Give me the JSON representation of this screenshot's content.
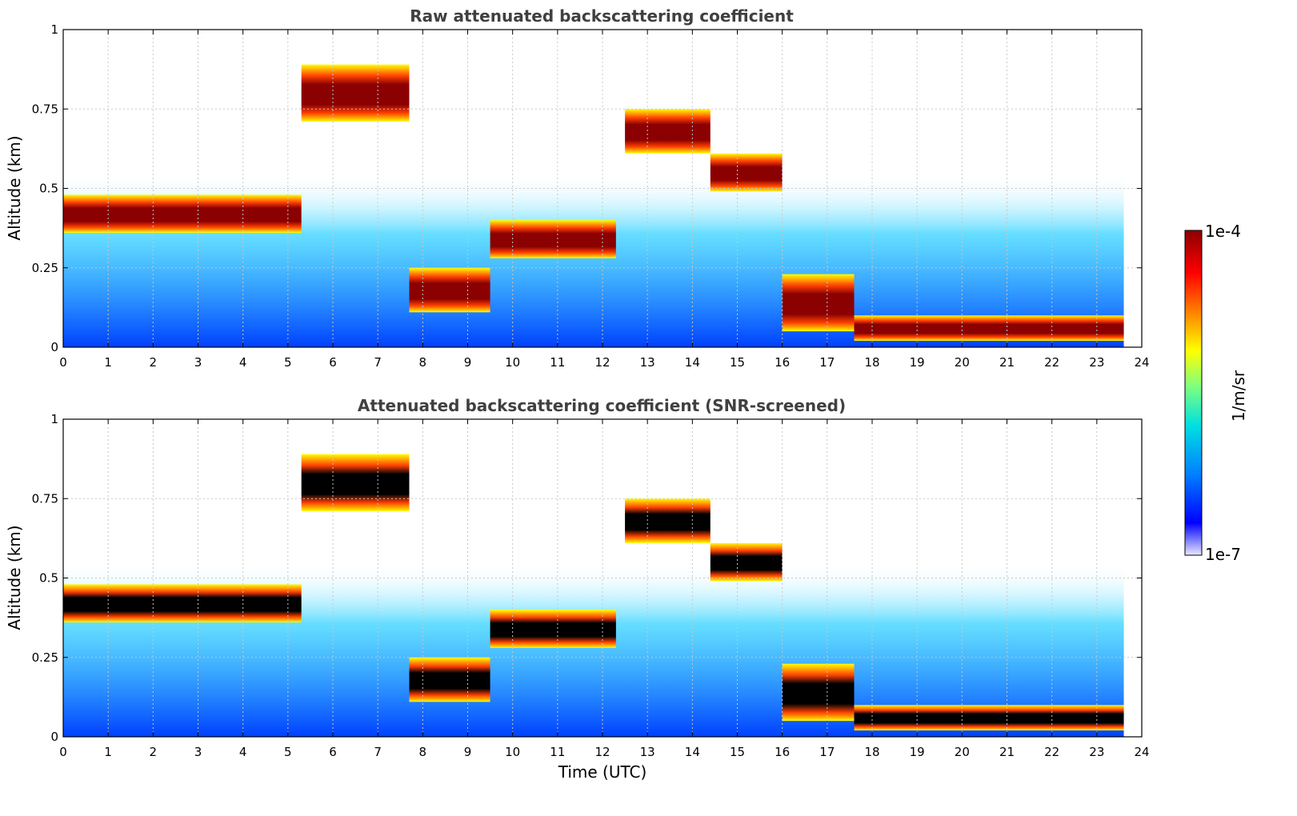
{
  "chart_data": [
    {
      "type": "heatmap",
      "title": "Raw attenuated backscattering coefficient",
      "xlabel": "",
      "ylabel": "Altitude (km)",
      "xlim": [
        0,
        24
      ],
      "ylim": [
        0,
        1
      ],
      "xticks": [
        "0",
        "1",
        "2",
        "3",
        "4",
        "5",
        "6",
        "7",
        "8",
        "9",
        "10",
        "11",
        "12",
        "13",
        "14",
        "15",
        "16",
        "17",
        "18",
        "19",
        "20",
        "21",
        "22",
        "23",
        "24"
      ],
      "yticks": [
        "0",
        "0.25",
        "0.5",
        "0.75",
        "1"
      ],
      "grid": true,
      "layers": [
        {
          "x": 0.0,
          "xend": 5.3,
          "y": 0.42,
          "thickness": 0.12,
          "color": "#8b0000"
        },
        {
          "x": 5.3,
          "xend": 7.7,
          "y": 0.8,
          "thickness": 0.18,
          "color": "#8b0000"
        },
        {
          "x": 7.7,
          "xend": 9.5,
          "y": 0.18,
          "thickness": 0.14,
          "color": "#8b0000"
        },
        {
          "x": 9.5,
          "xend": 12.3,
          "y": 0.34,
          "thickness": 0.12,
          "color": "#8b0000"
        },
        {
          "x": 12.5,
          "xend": 14.4,
          "y": 0.68,
          "thickness": 0.14,
          "color": "#8b0000"
        },
        {
          "x": 14.4,
          "xend": 16.0,
          "y": 0.55,
          "thickness": 0.12,
          "color": "#8b0000"
        },
        {
          "x": 16.0,
          "xend": 17.6,
          "y": 0.14,
          "thickness": 0.18,
          "color": "#8b0000"
        },
        {
          "x": 17.6,
          "xend": 23.6,
          "y": 0.06,
          "thickness": 0.08,
          "color": "#8b0000"
        }
      ],
      "data_extent": {
        "xmax": 23.6
      }
    },
    {
      "type": "heatmap",
      "title": "Attenuated backscattering coefficient (SNR-screened)",
      "xlabel": "Time (UTC)",
      "ylabel": "Altitude (km)",
      "xlim": [
        0,
        24
      ],
      "ylim": [
        0,
        1
      ],
      "xticks": [
        "0",
        "1",
        "2",
        "3",
        "4",
        "5",
        "6",
        "7",
        "8",
        "9",
        "10",
        "11",
        "12",
        "13",
        "14",
        "15",
        "16",
        "17",
        "18",
        "19",
        "20",
        "21",
        "22",
        "23",
        "24"
      ],
      "yticks": [
        "0",
        "0.25",
        "0.5",
        "0.75",
        "1"
      ],
      "grid": true,
      "layers": [
        {
          "x": 0.0,
          "xend": 5.3,
          "y": 0.42,
          "thickness": 0.12,
          "color": "#000000"
        },
        {
          "x": 5.3,
          "xend": 7.7,
          "y": 0.8,
          "thickness": 0.18,
          "color": "#000000"
        },
        {
          "x": 7.7,
          "xend": 9.5,
          "y": 0.18,
          "thickness": 0.14,
          "color": "#000000"
        },
        {
          "x": 9.5,
          "xend": 12.3,
          "y": 0.34,
          "thickness": 0.12,
          "color": "#000000"
        },
        {
          "x": 12.5,
          "xend": 14.4,
          "y": 0.68,
          "thickness": 0.14,
          "color": "#000000"
        },
        {
          "x": 14.4,
          "xend": 16.0,
          "y": 0.55,
          "thickness": 0.12,
          "color": "#000000"
        },
        {
          "x": 16.0,
          "xend": 17.6,
          "y": 0.14,
          "thickness": 0.18,
          "color": "#000000"
        },
        {
          "x": 17.6,
          "xend": 23.6,
          "y": 0.06,
          "thickness": 0.08,
          "color": "#000000"
        }
      ],
      "data_extent": {
        "xmax": 23.6
      }
    }
  ],
  "colorbar": {
    "label": "1/m/sr",
    "max_label": "1e-4",
    "min_label": "1e-7",
    "scale": "log",
    "colormap": [
      "#e8e8ff",
      "#0000ff",
      "#0080ff",
      "#00e0e0",
      "#7fff7f",
      "#ffff00",
      "#ff8000",
      "#ff0000",
      "#8b0000"
    ]
  },
  "colors": {
    "grid": "#c8c8c8",
    "saturated_screened": "#000000",
    "saturated_raw": "#8b0000"
  }
}
